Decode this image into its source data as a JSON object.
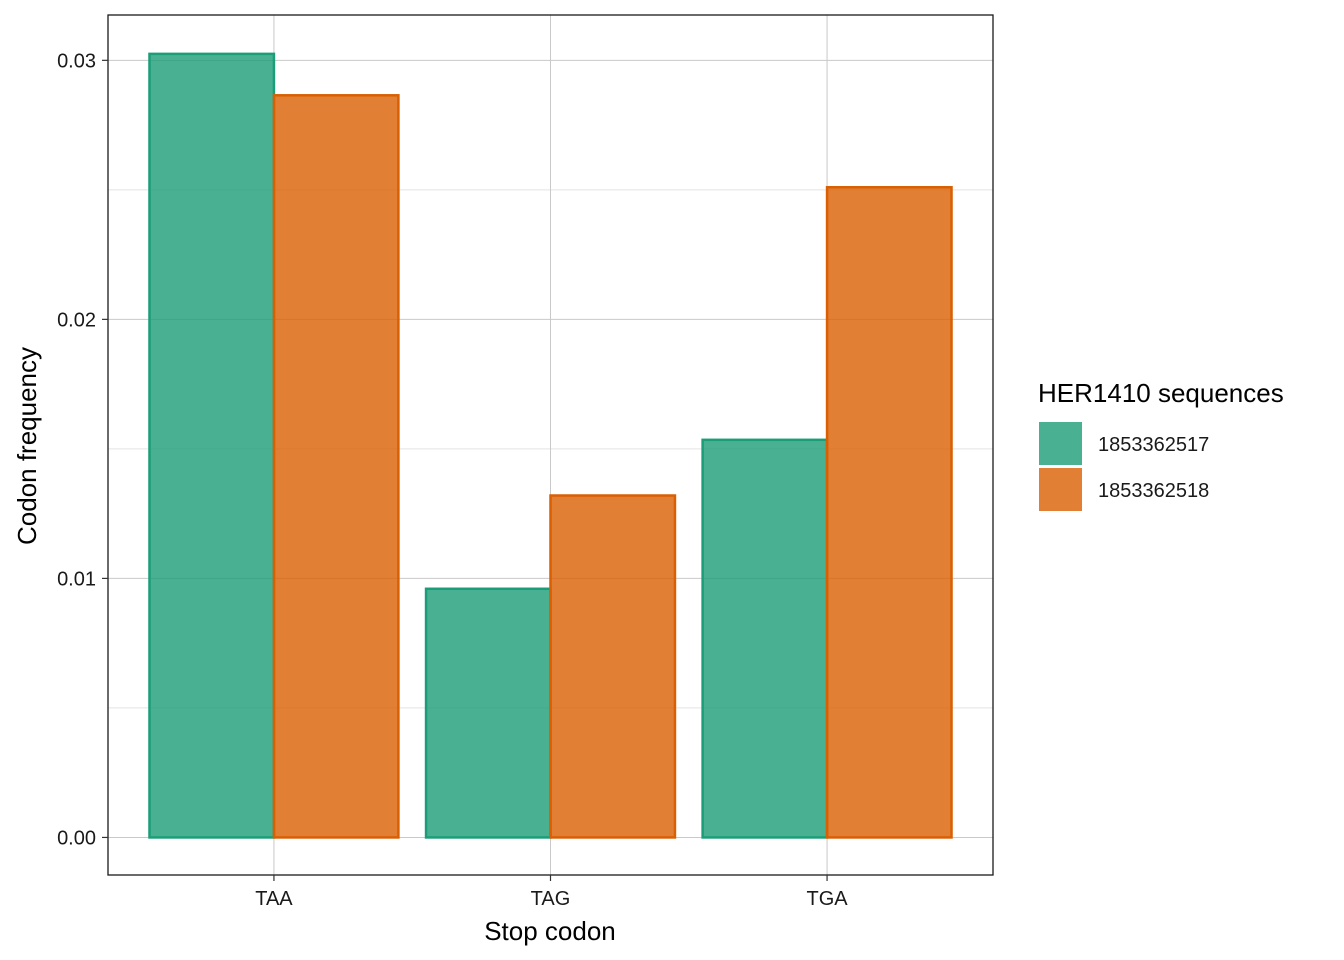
{
  "chart_data": {
    "type": "bar",
    "title": "",
    "xlabel": "Stop codon",
    "ylabel": "Codon frequency",
    "categories": [
      "TAA",
      "TAG",
      "TGA"
    ],
    "series": [
      {
        "name": "1853362517",
        "values": [
          0.03025,
          0.0096,
          0.01535
        ],
        "color": "#1B9E77"
      },
      {
        "name": "1853362518",
        "values": [
          0.02865,
          0.0132,
          0.0251
        ],
        "color": "#D95F02"
      }
    ],
    "ylim": [
      -0.00145,
      0.03175
    ],
    "yticks": [
      0.0,
      0.01,
      0.02,
      0.03
    ],
    "ytick_labels": [
      "0.00",
      "0.01",
      "0.02",
      "0.03"
    ],
    "grid": true,
    "legend": {
      "title": "HER1410 sequences",
      "position": "right"
    }
  }
}
